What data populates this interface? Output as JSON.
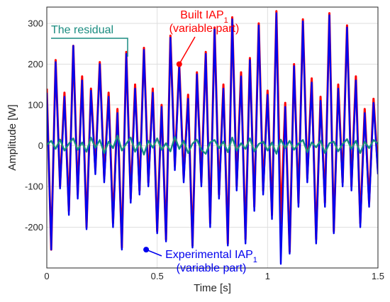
{
  "chart_data": {
    "type": "line",
    "xlabel": "Time [s]",
    "ylabel": "Amplitude [W]",
    "xlim": [
      0,
      1.5
    ],
    "ylim": [
      -300,
      340
    ],
    "xticks": [
      0,
      0.5,
      1,
      1.5
    ],
    "xtick_labels": [
      "0",
      "0.5",
      "1",
      "1.5"
    ],
    "yticks": [
      -200,
      -100,
      0,
      100,
      200,
      300
    ],
    "ytick_labels": [
      "-200",
      "-100",
      "0",
      "100",
      "200",
      "300"
    ],
    "grid": true,
    "series": [
      {
        "name": "Built IAP1 (variable part)",
        "color": "#ff0000",
        "x": [
          0.0,
          0.02,
          0.04,
          0.06,
          0.08,
          0.1,
          0.12,
          0.14,
          0.16,
          0.18,
          0.2,
          0.22,
          0.24,
          0.26,
          0.28,
          0.3,
          0.32,
          0.34,
          0.36,
          0.38,
          0.4,
          0.42,
          0.44,
          0.46,
          0.48,
          0.5,
          0.52,
          0.54,
          0.56,
          0.58,
          0.6,
          0.62,
          0.64,
          0.66,
          0.68,
          0.7,
          0.72,
          0.74,
          0.76,
          0.78,
          0.8,
          0.82,
          0.84,
          0.86,
          0.88,
          0.9,
          0.92,
          0.94,
          0.96,
          0.98,
          1.0,
          1.02,
          1.04,
          1.06,
          1.08,
          1.1,
          1.12,
          1.14,
          1.16,
          1.18,
          1.2,
          1.22,
          1.24,
          1.26,
          1.28,
          1.3,
          1.32,
          1.34,
          1.36,
          1.38,
          1.4,
          1.42,
          1.44,
          1.46,
          1.48,
          1.5
        ],
        "values": [
          140,
          -255,
          210,
          -100,
          130,
          -160,
          245,
          -120,
          170,
          -200,
          140,
          -60,
          205,
          -80,
          130,
          -190,
          90,
          -250,
          230,
          -130,
          150,
          -110,
          240,
          -90,
          140,
          -210,
          100,
          -230,
          270,
          -50,
          200,
          -80,
          125,
          -245,
          180,
          -90,
          230,
          -190,
          290,
          -120,
          150,
          -240,
          315,
          -100,
          180,
          -230,
          215,
          -150,
          300,
          -110,
          135,
          -170,
          330,
          -190,
          105,
          -260,
          200,
          -140,
          310,
          -80,
          165,
          -230,
          120,
          -140,
          325,
          -210,
          150,
          -90,
          295,
          -100,
          170,
          -190,
          90,
          -140,
          115,
          -60
        ]
      },
      {
        "name": "Experimental IAP1 (variable part)",
        "color": "#0000ee",
        "x": [
          0.0,
          0.02,
          0.04,
          0.06,
          0.08,
          0.1,
          0.12,
          0.14,
          0.16,
          0.18,
          0.2,
          0.22,
          0.24,
          0.26,
          0.28,
          0.3,
          0.32,
          0.34,
          0.36,
          0.38,
          0.4,
          0.42,
          0.44,
          0.46,
          0.48,
          0.5,
          0.52,
          0.54,
          0.56,
          0.58,
          0.6,
          0.62,
          0.64,
          0.66,
          0.68,
          0.7,
          0.72,
          0.74,
          0.76,
          0.78,
          0.8,
          0.82,
          0.84,
          0.86,
          0.88,
          0.9,
          0.92,
          0.94,
          0.96,
          0.98,
          1.0,
          1.02,
          1.04,
          1.06,
          1.08,
          1.1,
          1.12,
          1.14,
          1.16,
          1.18,
          1.2,
          1.22,
          1.24,
          1.26,
          1.28,
          1.3,
          1.32,
          1.34,
          1.36,
          1.38,
          1.4,
          1.42,
          1.44,
          1.46,
          1.48,
          1.5
        ],
        "values": [
          130,
          -255,
          205,
          -105,
          120,
          -170,
          245,
          -130,
          160,
          -205,
          135,
          -70,
          200,
          -90,
          120,
          -200,
          80,
          -255,
          225,
          -140,
          140,
          -120,
          235,
          -100,
          130,
          -215,
          95,
          -235,
          265,
          -60,
          195,
          -90,
          115,
          -250,
          175,
          -100,
          225,
          -200,
          285,
          -130,
          140,
          -245,
          310,
          -110,
          170,
          -240,
          210,
          -160,
          295,
          -120,
          125,
          -180,
          325,
          -290,
          95,
          -265,
          195,
          -150,
          305,
          -90,
          155,
          -240,
          110,
          -150,
          320,
          -215,
          140,
          -100,
          290,
          -110,
          160,
          -200,
          80,
          -150,
          105,
          -70
        ]
      },
      {
        "name": "The residual",
        "color": "#1a8c80",
        "x": [
          0.0,
          0.02,
          0.04,
          0.06,
          0.08,
          0.1,
          0.12,
          0.14,
          0.16,
          0.18,
          0.2,
          0.22,
          0.24,
          0.26,
          0.28,
          0.3,
          0.32,
          0.34,
          0.36,
          0.38,
          0.4,
          0.42,
          0.44,
          0.46,
          0.48,
          0.5,
          0.52,
          0.54,
          0.56,
          0.58,
          0.6,
          0.62,
          0.64,
          0.66,
          0.68,
          0.7,
          0.72,
          0.74,
          0.76,
          0.78,
          0.8,
          0.82,
          0.84,
          0.86,
          0.88,
          0.9,
          0.92,
          0.94,
          0.96,
          0.98,
          1.0,
          1.02,
          1.04,
          1.06,
          1.08,
          1.1,
          1.12,
          1.14,
          1.16,
          1.18,
          1.2,
          1.22,
          1.24,
          1.26,
          1.28,
          1.3,
          1.32,
          1.34,
          1.36,
          1.38,
          1.4,
          1.42,
          1.44,
          1.46,
          1.48,
          1.5
        ],
        "values": [
          2,
          12,
          -8,
          15,
          -12,
          5,
          18,
          -10,
          8,
          -15,
          20,
          -5,
          14,
          -18,
          10,
          -6,
          25,
          -12,
          5,
          20,
          -15,
          8,
          -22,
          12,
          -5,
          18,
          -10,
          6,
          -14,
          22,
          -8,
          12,
          -18,
          5,
          15,
          -10,
          -20,
          8,
          14,
          -6,
          10,
          -16,
          20,
          -12,
          6,
          -8,
          18,
          -14,
          4,
          10,
          -12,
          8,
          -20,
          15,
          -6,
          12,
          -10,
          5,
          14,
          -16,
          8,
          -4,
          12,
          -18,
          6,
          10,
          -14,
          4,
          16,
          -8,
          12,
          -18,
          10,
          -6,
          14,
          5
        ]
      }
    ],
    "annotations": [
      {
        "id": "built",
        "text": "Built IAP",
        "sub": "1",
        "text2": "(variable part)",
        "color": "#ff0000",
        "point": [
          0.6,
          200
        ]
      },
      {
        "id": "exp",
        "text": "Experimental IAP",
        "sub": "1",
        "text2": "(variable part)",
        "color": "#0000ee",
        "point": [
          0.45,
          -255
        ]
      },
      {
        "id": "resid",
        "text": "The residual",
        "color": "#1a8c80"
      }
    ]
  }
}
